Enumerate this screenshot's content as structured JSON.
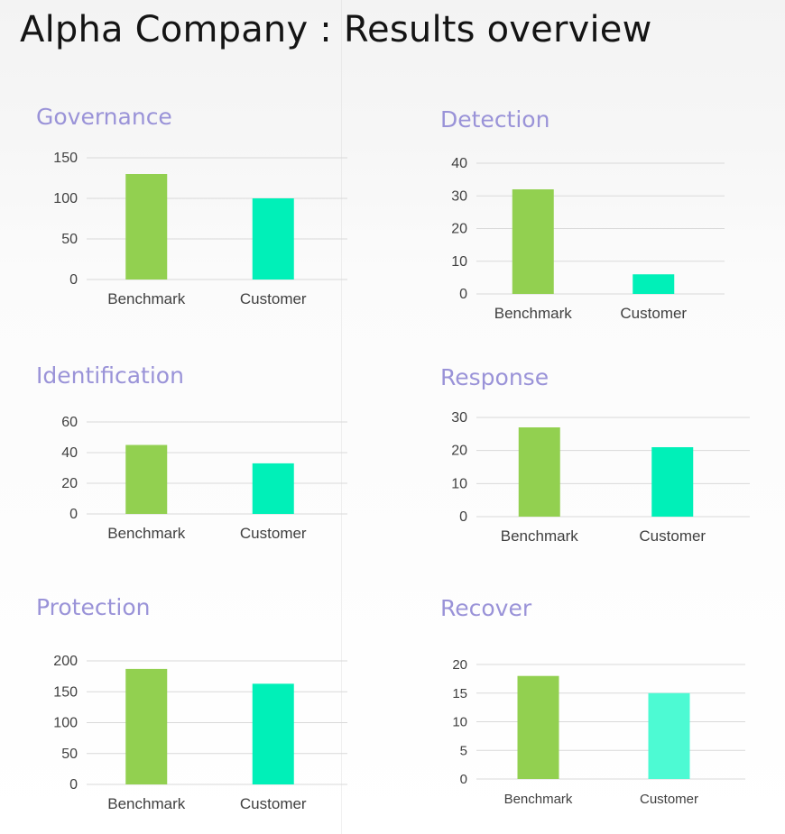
{
  "header": {
    "title": "Alpha Company : Results overview"
  },
  "colors": {
    "title": "#9a93d8",
    "benchmark": "#92d050",
    "customer": "#00f0b8",
    "customer_light": "#4dfad3",
    "grid": "#d9d9d9",
    "axis_text": "#404040"
  },
  "chart_data": [
    {
      "type": "bar",
      "title": "Governance",
      "categories": [
        "Benchmark",
        "Customer"
      ],
      "values": [
        130,
        100
      ],
      "ylim": [
        0,
        150
      ],
      "yticks": [
        0,
        50,
        100,
        150
      ],
      "grid": true
    },
    {
      "type": "bar",
      "title": "Detection",
      "categories": [
        "Benchmark",
        "Customer"
      ],
      "values": [
        32,
        6
      ],
      "ylim": [
        0,
        40
      ],
      "yticks": [
        0,
        10,
        20,
        30,
        40
      ],
      "grid": true
    },
    {
      "type": "bar",
      "title": "Identification",
      "categories": [
        "Benchmark",
        "Customer"
      ],
      "values": [
        45,
        33
      ],
      "ylim": [
        0,
        60
      ],
      "yticks": [
        0,
        20,
        40,
        60
      ],
      "grid": true
    },
    {
      "type": "bar",
      "title": "Response",
      "categories": [
        "Benchmark",
        "Customer"
      ],
      "values": [
        27,
        21
      ],
      "ylim": [
        0,
        30
      ],
      "yticks": [
        0,
        10,
        20,
        30
      ],
      "grid": true
    },
    {
      "type": "bar",
      "title": "Protection",
      "categories": [
        "Benchmark",
        "Customer"
      ],
      "values": [
        187,
        163
      ],
      "ylim": [
        0,
        200
      ],
      "yticks": [
        0,
        50,
        100,
        150,
        200
      ],
      "grid": true
    },
    {
      "type": "bar",
      "title": "Recover",
      "categories": [
        "Benchmark",
        "Customer"
      ],
      "values": [
        18,
        15
      ],
      "ylim": [
        0,
        20
      ],
      "yticks": [
        0,
        5,
        10,
        15,
        20
      ],
      "grid": true
    }
  ]
}
